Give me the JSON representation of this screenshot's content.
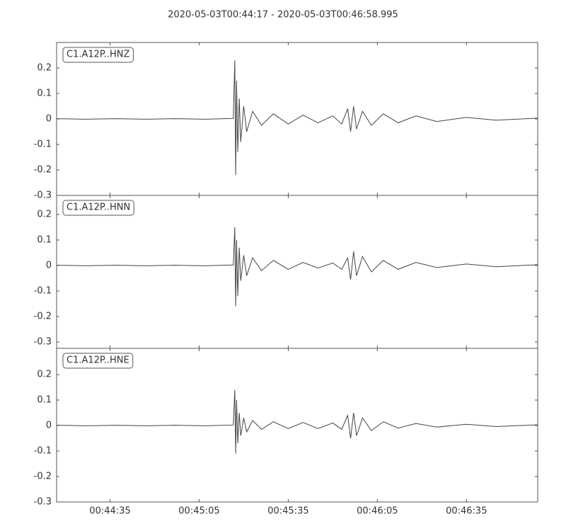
{
  "chart_data": [
    {
      "type": "line",
      "title": "2020-05-03T00:44:17  -  2020-05-03T00:46:58.995",
      "x": [
        2657,
        2667,
        2677,
        2687,
        2697,
        2707,
        2716.5,
        2717,
        2717.3,
        2717.6,
        2718,
        2718.5,
        2719,
        2720,
        2721,
        2723,
        2726,
        2730,
        2735,
        2740,
        2745,
        2750,
        2753,
        2755,
        2756,
        2757,
        2758,
        2760,
        2763,
        2767,
        2772,
        2778,
        2785,
        2795,
        2805,
        2818.995
      ],
      "series": [
        {
          "name": "C1.A12P..HNZ",
          "color": "#444444",
          "values": [
            0.001,
            -0.001,
            0.001,
            -0.001,
            0.001,
            -0.001,
            0.002,
            0.23,
            -0.22,
            0.15,
            -0.13,
            0.08,
            -0.09,
            0.05,
            -0.05,
            0.03,
            -0.025,
            0.02,
            -0.02,
            0.015,
            -0.015,
            0.012,
            -0.02,
            0.04,
            -0.05,
            0.05,
            -0.04,
            0.03,
            -0.025,
            0.02,
            -0.015,
            0.012,
            -0.01,
            0.006,
            -0.005,
            0.003
          ]
        }
      ],
      "xlim": [
        2657,
        2818.995
      ],
      "xticks": [
        {
          "value": 2675,
          "label": "00:44:35"
        },
        {
          "value": 2705,
          "label": "00:45:05"
        },
        {
          "value": 2735,
          "label": "00:45:35"
        },
        {
          "value": 2765,
          "label": "00:46:05"
        },
        {
          "value": 2795,
          "label": "00:46:35"
        }
      ],
      "ylim": [
        -0.3,
        0.3
      ],
      "yticks": [
        -0.3,
        -0.2,
        -0.1,
        0.0,
        0.1,
        0.2
      ]
    },
    {
      "type": "line",
      "x": [
        2657,
        2667,
        2677,
        2687,
        2697,
        2707,
        2716.5,
        2717,
        2717.3,
        2717.6,
        2718,
        2718.5,
        2719,
        2720,
        2721,
        2723,
        2726,
        2730,
        2735,
        2740,
        2745,
        2750,
        2753,
        2755,
        2756,
        2757,
        2758,
        2760,
        2763,
        2767,
        2772,
        2778,
        2785,
        2795,
        2805,
        2818.995
      ],
      "series": [
        {
          "name": "C1.A12P..HNN",
          "color": "#444444",
          "values": [
            0.001,
            -0.001,
            0.001,
            -0.001,
            0.001,
            -0.001,
            0.002,
            0.15,
            -0.16,
            0.1,
            -0.12,
            0.07,
            -0.06,
            0.04,
            -0.04,
            0.03,
            -0.02,
            0.02,
            -0.015,
            0.012,
            -0.01,
            0.01,
            -0.015,
            0.03,
            -0.055,
            0.055,
            -0.04,
            0.035,
            -0.025,
            0.02,
            -0.015,
            0.012,
            -0.008,
            0.006,
            -0.005,
            0.003
          ]
        }
      ],
      "xlim": [
        2657,
        2818.995
      ],
      "xticks": [
        {
          "value": 2675,
          "label": "00:44:35"
        },
        {
          "value": 2705,
          "label": "00:45:05"
        },
        {
          "value": 2735,
          "label": "00:45:35"
        },
        {
          "value": 2765,
          "label": "00:46:05"
        },
        {
          "value": 2795,
          "label": "00:46:35"
        }
      ],
      "ylim": [
        -0.325,
        0.275
      ],
      "yticks": [
        -0.3,
        -0.2,
        -0.1,
        0.0,
        0.1,
        0.2
      ]
    },
    {
      "type": "line",
      "x": [
        2657,
        2667,
        2677,
        2687,
        2697,
        2707,
        2716.5,
        2717,
        2717.3,
        2717.6,
        2718,
        2718.5,
        2719,
        2720,
        2721,
        2723,
        2726,
        2730,
        2735,
        2740,
        2745,
        2750,
        2753,
        2755,
        2756,
        2757,
        2758,
        2760,
        2763,
        2767,
        2772,
        2778,
        2785,
        2795,
        2805,
        2818.995
      ],
      "series": [
        {
          "name": "C1.A12P..HNE",
          "color": "#444444",
          "values": [
            0.001,
            -0.001,
            0.001,
            -0.001,
            0.001,
            -0.001,
            0.002,
            0.14,
            -0.11,
            0.1,
            -0.07,
            0.05,
            -0.04,
            0.03,
            -0.025,
            0.02,
            -0.015,
            0.015,
            -0.012,
            0.012,
            -0.012,
            0.01,
            -0.015,
            0.04,
            -0.05,
            0.05,
            -0.04,
            0.03,
            -0.02,
            0.015,
            -0.01,
            0.008,
            -0.006,
            0.005,
            -0.004,
            0.003
          ]
        }
      ],
      "xlim": [
        2657,
        2818.995
      ],
      "xticks": [
        {
          "value": 2675,
          "label": "00:44:35"
        },
        {
          "value": 2705,
          "label": "00:45:05"
        },
        {
          "value": 2735,
          "label": "00:45:35"
        },
        {
          "value": 2765,
          "label": "00:46:05"
        },
        {
          "value": 2795,
          "label": "00:46:35"
        }
      ],
      "ylim": [
        -0.3,
        0.303
      ],
      "yticks": [
        -0.3,
        -0.2,
        -0.1,
        0.0,
        0.1,
        0.2
      ]
    }
  ]
}
